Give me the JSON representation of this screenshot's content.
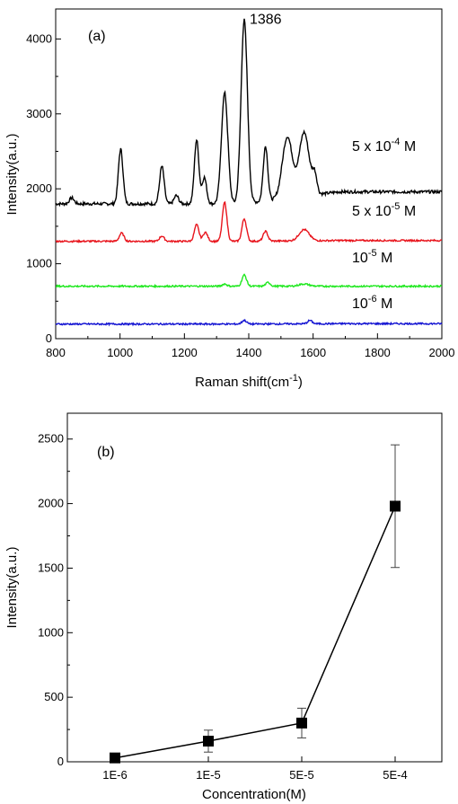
{
  "chart_data": [
    {
      "type": "line",
      "panel_label": "(a)",
      "xlabel": "Raman shift(cm",
      "xlabel_sup": "-1",
      "xlabel_end": ")",
      "ylabel": "Intensity(a.u.)",
      "xlim": [
        800,
        2000
      ],
      "ylim": [
        0,
        4400
      ],
      "x_ticks": [
        800,
        1000,
        1200,
        1400,
        1600,
        1800,
        2000
      ],
      "y_ticks": [
        0,
        1000,
        2000,
        3000,
        4000
      ],
      "peak_annotation": {
        "text": "1386",
        "x": 1386,
        "y": 4420
      },
      "series": [
        {
          "label": {
            "base": "5 x 10",
            "exp": "-4",
            "unit": " M"
          },
          "color": "#000000",
          "baseline": 1800,
          "tail": 1960,
          "peaks": [
            [
              850,
              80
            ],
            [
              1002,
              730
            ],
            [
              1130,
              500
            ],
            [
              1175,
              110
            ],
            [
              1238,
              850
            ],
            [
              1262,
              350
            ],
            [
              1325,
              1480
            ],
            [
              1386,
              2450
            ],
            [
              1452,
              730
            ],
            [
              1520,
              820
            ],
            [
              1572,
              850
            ],
            [
              1605,
              250
            ]
          ]
        },
        {
          "label": {
            "base": "5 x 10",
            "exp": "-5",
            "unit": " M"
          },
          "color": "#e8141c",
          "baseline": 1300,
          "tail": 1310,
          "peaks": [
            [
              1005,
              110
            ],
            [
              1130,
              70
            ],
            [
              1238,
              220
            ],
            [
              1265,
              120
            ],
            [
              1325,
              520
            ],
            [
              1386,
              300
            ],
            [
              1452,
              130
            ],
            [
              1572,
              150
            ]
          ]
        },
        {
          "label": {
            "base": "10",
            "exp": "-5",
            "unit": " M"
          },
          "color": "#1ee81e",
          "baseline": 700,
          "tail": 700,
          "peaks": [
            [
              1325,
              30
            ],
            [
              1386,
              150
            ],
            [
              1460,
              50
            ],
            [
              1572,
              30
            ]
          ]
        },
        {
          "label": {
            "base": "10",
            "exp": "-6",
            "unit": " M"
          },
          "color": "#1414d2",
          "baseline": 195,
          "tail": 200,
          "peaks": [
            [
              1386,
              50
            ],
            [
              1590,
              45
            ]
          ]
        }
      ]
    },
    {
      "type": "scatter",
      "panel_label": "(b)",
      "xlabel": "Concentration(M)",
      "ylabel": "Intensity(a.u.)",
      "categories": [
        "1E-6",
        "1E-5",
        "5E-5",
        "5E-4"
      ],
      "ylim": [
        0,
        2700
      ],
      "y_ticks": [
        0,
        500,
        1000,
        1500,
        2000,
        2500
      ],
      "values": [
        30,
        160,
        300,
        1980
      ],
      "errors": [
        0,
        85,
        115,
        475
      ]
    }
  ]
}
